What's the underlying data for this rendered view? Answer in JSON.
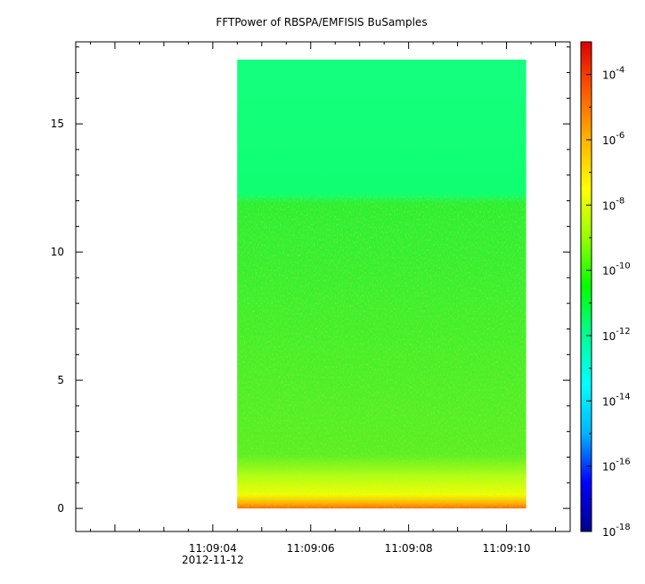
{
  "chart_data": {
    "type": "heatmap",
    "title": "FFTPower of RBSPA/EMFISIS  BuSamples",
    "xlabel": "",
    "ylabel": "",
    "x_ticks": [
      {
        "label": "11:09:04",
        "sublabel": "2012-11-12"
      },
      {
        "label": "11:09:06"
      },
      {
        "label": "11:09:08"
      },
      {
        "label": "11:09:10"
      }
    ],
    "xlim": [
      "11:09:01.2",
      "11:09:11.3"
    ],
    "x_data_range": [
      "11:09:04.5",
      "11:09:10.4"
    ],
    "y_ticks": [
      0,
      5,
      10,
      15
    ],
    "ylim": [
      -0.9,
      18.2
    ],
    "y_data_range": [
      0,
      17.5
    ],
    "colorbar": {
      "scale": "log",
      "range": [
        1e-18,
        0.001
      ],
      "ticks": [
        {
          "base": "10",
          "exp": "-18",
          "value": 1e-18
        },
        {
          "base": "10",
          "exp": "-16",
          "value": 1e-16
        },
        {
          "base": "10",
          "exp": "-14",
          "value": 1e-14
        },
        {
          "base": "10",
          "exp": "-12",
          "value": 1e-12
        },
        {
          "base": "10",
          "exp": "-10",
          "value": 1e-10
        },
        {
          "base": "10",
          "exp": "-8",
          "value": 1e-08
        },
        {
          "base": "10",
          "exp": "-6",
          "value": 1e-06
        },
        {
          "base": "10",
          "exp": "-4",
          "value": 0.0001
        }
      ],
      "colors": [
        "#00008c",
        "#0000ff",
        "#00b4ff",
        "#00ffff",
        "#00ff96",
        "#00ff00",
        "#96ff00",
        "#ffff00",
        "#ffb400",
        "#ff5a00",
        "#dc0000"
      ]
    },
    "bands": [
      {
        "y_range": [
          12.2,
          17.5
        ],
        "log10_power": -12.6,
        "note_color": "#00ff80"
      },
      {
        "y_range": [
          1.2,
          12.2
        ],
        "log10_power": -10.8,
        "note_color": "#28f028"
      },
      {
        "y_range": [
          0.4,
          1.2
        ],
        "log10_power": -9.0,
        "note_color": "#d8ff00"
      },
      {
        "y_range": [
          0,
          0.4
        ],
        "log10_power": -7.0,
        "note_color": "#ff8c00"
      }
    ],
    "grid": false,
    "legend": "none"
  }
}
